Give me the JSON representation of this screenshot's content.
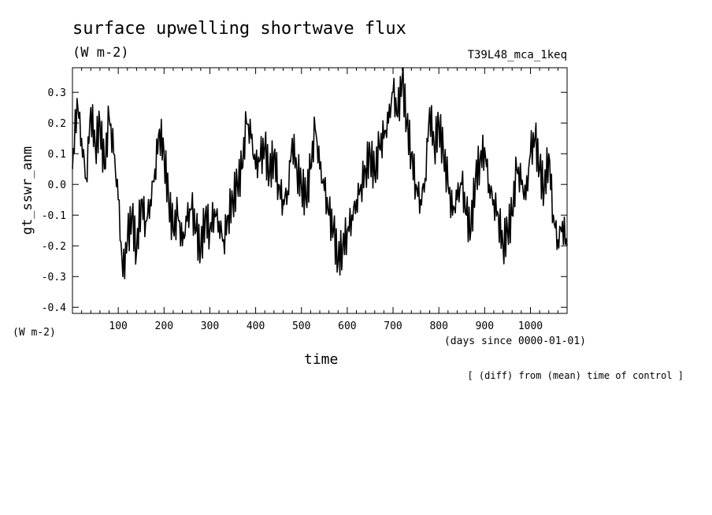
{
  "header": {
    "title": "surface upwelling shortwave flux",
    "units": "(W m-2)",
    "run_id": "T39L48_mca_1keq"
  },
  "footer": {
    "y_unit_label": "(W m-2)",
    "x_unit_label": "(days since 0000-01-01)",
    "note": "[ (diff) from (mean) time of control ]"
  },
  "chart_data": {
    "type": "line",
    "title": "surface upwelling shortwave flux",
    "xlabel": "time",
    "ylabel": "gt_sswr_anm",
    "xlim": [
      0,
      1080
    ],
    "ylim": [
      -0.42,
      0.38
    ],
    "x_ticks": [
      100,
      200,
      300,
      400,
      500,
      600,
      700,
      800,
      900,
      1000
    ],
    "y_ticks": [
      -0.4,
      -0.3,
      -0.2,
      -0.1,
      0.0,
      0.1,
      0.2,
      0.3
    ],
    "y_tick_labels": [
      "-0.4",
      "-0.3",
      "-0.2",
      "-0.1",
      "0.0",
      "0.1",
      "0.2",
      "0.3"
    ],
    "grid": false,
    "series": [
      {
        "color": "#000000",
        "x": [
          0,
          10,
          20,
          30,
          40,
          50,
          60,
          70,
          80,
          90,
          100,
          110,
          120,
          130,
          140,
          150,
          160,
          170,
          180,
          190,
          200,
          210,
          220,
          230,
          240,
          250,
          260,
          270,
          280,
          290,
          300,
          310,
          320,
          330,
          340,
          350,
          360,
          370,
          380,
          390,
          400,
          410,
          420,
          430,
          440,
          450,
          460,
          470,
          480,
          490,
          500,
          510,
          520,
          530,
          540,
          550,
          560,
          570,
          580,
          590,
          600,
          610,
          620,
          630,
          640,
          650,
          660,
          670,
          680,
          690,
          700,
          710,
          720,
          730,
          740,
          750,
          760,
          770,
          780,
          790,
          800,
          810,
          820,
          830,
          840,
          850,
          860,
          870,
          880,
          890,
          900,
          910,
          920,
          930,
          940,
          950,
          960,
          970,
          980,
          990,
          1000,
          1010,
          1020,
          1030,
          1040,
          1050,
          1060,
          1070,
          1080
        ],
        "y": [
          0.05,
          0.28,
          0.15,
          0.02,
          0.25,
          0.12,
          0.2,
          0.05,
          0.22,
          0.1,
          -0.05,
          -0.3,
          -0.18,
          -0.1,
          -0.22,
          -0.05,
          -0.12,
          -0.05,
          0.05,
          0.18,
          0.1,
          -0.05,
          -0.15,
          -0.1,
          -0.2,
          -0.12,
          -0.08,
          -0.15,
          -0.22,
          -0.1,
          -0.15,
          -0.08,
          -0.12,
          -0.18,
          -0.1,
          -0.05,
          0.0,
          0.05,
          0.2,
          0.15,
          0.05,
          0.08,
          0.12,
          0.03,
          0.1,
          0.0,
          -0.05,
          -0.02,
          0.15,
          0.05,
          0.0,
          -0.05,
          0.05,
          0.18,
          0.05,
          -0.02,
          -0.1,
          -0.15,
          -0.25,
          -0.2,
          -0.15,
          -0.1,
          -0.05,
          0.0,
          0.05,
          0.1,
          0.03,
          0.12,
          0.15,
          0.2,
          0.3,
          0.22,
          0.35,
          0.2,
          0.1,
          0.0,
          -0.05,
          0.02,
          0.25,
          0.12,
          0.2,
          0.1,
          0.0,
          -0.1,
          -0.05,
          0.0,
          -0.1,
          -0.15,
          0.02,
          0.08,
          0.12,
          0.0,
          -0.05,
          -0.1,
          -0.2,
          -0.15,
          -0.1,
          0.05,
          0.0,
          -0.05,
          0.1,
          0.15,
          0.05,
          -0.02,
          0.1,
          -0.1,
          -0.18,
          -0.12,
          -0.2
        ]
      }
    ]
  }
}
